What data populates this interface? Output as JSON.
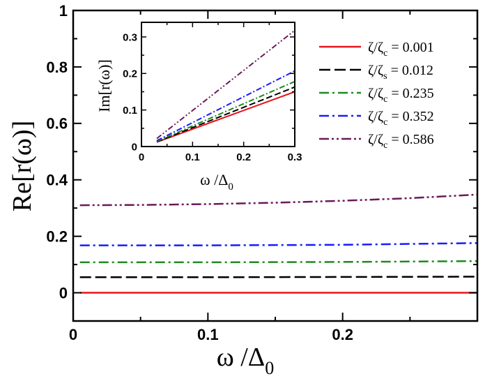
{
  "chart_data": [
    {
      "type": "line",
      "role": "main",
      "xlabel": "ω /Δ",
      "xlabel_sub": "0",
      "ylabel": "Re[r(ω)]",
      "xlim": [
        0,
        0.3
      ],
      "ylim": [
        -0.1,
        1.0
      ],
      "x_ticks": [
        0,
        0.1,
        0.2
      ],
      "x_tick_labels": [
        "0",
        "0.1",
        "0.2"
      ],
      "y_ticks": [
        0,
        0.2,
        0.4,
        0.6,
        0.8,
        1.0
      ],
      "y_tick_labels": [
        "0",
        "0.2",
        "0.4",
        "0.6",
        "0.8",
        "1"
      ],
      "grid": false,
      "series": [
        {
          "name": "ζ/ζc = 0.001",
          "color": "#e8141c",
          "dash": "solid",
          "x": [
            0.005,
            0.1,
            0.2,
            0.3
          ],
          "values": [
            0.0,
            0.0,
            0.0,
            0.0
          ]
        },
        {
          "name": "ζ/ζs = 0.012",
          "color": "#000000",
          "dash": "dashed",
          "x": [
            0.005,
            0.1,
            0.2,
            0.3
          ],
          "values": [
            0.055,
            0.055,
            0.056,
            0.057
          ]
        },
        {
          "name": "ζ/ζc = 0.235",
          "color": "#1f8a1f",
          "dash": "dashdot",
          "x": [
            0.005,
            0.1,
            0.2,
            0.3
          ],
          "values": [
            0.108,
            0.108,
            0.109,
            0.112
          ]
        },
        {
          "name": "ζ/ζc = 0.352",
          "color": "#1a1aff",
          "dash": "dashdot",
          "x": [
            0.005,
            0.1,
            0.2,
            0.3
          ],
          "values": [
            0.168,
            0.168,
            0.17,
            0.176
          ]
        },
        {
          "name": "ζ/ζc = 0.586",
          "color": "#6b1a5a",
          "dash": "dashdotdot",
          "x": [
            0.005,
            0.05,
            0.1,
            0.15,
            0.2,
            0.25,
            0.3
          ],
          "values": [
            0.31,
            0.311,
            0.314,
            0.319,
            0.326,
            0.335,
            0.348
          ]
        }
      ],
      "legend": {
        "position": "top-right",
        "entries": [
          {
            "main": "ζ/ζ",
            "sub": "c",
            "value": " = 0.001"
          },
          {
            "main": "ζ/ζ",
            "sub": "s",
            "value": " = 0.012"
          },
          {
            "main": "ζ/ζ",
            "sub": "c",
            "value": " = 0.235"
          },
          {
            "main": "ζ/ζ",
            "sub": "c",
            "value": " = 0.352"
          },
          {
            "main": "ζ/ζ",
            "sub": "c",
            "value": " = 0.586"
          }
        ]
      }
    },
    {
      "type": "line",
      "role": "inset",
      "xlabel": "ω /Δ",
      "xlabel_sub": "0",
      "ylabel": "Im[r(ω)]",
      "xlim": [
        0,
        0.3
      ],
      "ylim": [
        0,
        0.34
      ],
      "x_ticks": [
        0,
        0.1,
        0.2,
        0.3
      ],
      "x_tick_labels": [
        "0",
        "0.1",
        "0.2",
        "0.3"
      ],
      "y_ticks": [
        0,
        0.1,
        0.2,
        0.3
      ],
      "y_tick_labels": [
        "0",
        "0.1",
        "0.2",
        "0.3"
      ],
      "grid": false,
      "series": [
        {
          "color": "#e8141c",
          "dash": "solid",
          "x": [
            0.03,
            0.3
          ],
          "values": [
            0.012,
            0.15
          ]
        },
        {
          "color": "#000000",
          "dash": "dashed",
          "x": [
            0.03,
            0.3
          ],
          "values": [
            0.013,
            0.163
          ]
        },
        {
          "color": "#1f8a1f",
          "dash": "dashdot",
          "x": [
            0.03,
            0.3
          ],
          "values": [
            0.014,
            0.178
          ]
        },
        {
          "color": "#1a1aff",
          "dash": "dashdot",
          "x": [
            0.03,
            0.3
          ],
          "values": [
            0.016,
            0.207
          ]
        },
        {
          "color": "#6b1a5a",
          "dash": "dashdotdot",
          "x": [
            0.03,
            0.3
          ],
          "values": [
            0.022,
            0.318
          ]
        }
      ]
    }
  ]
}
